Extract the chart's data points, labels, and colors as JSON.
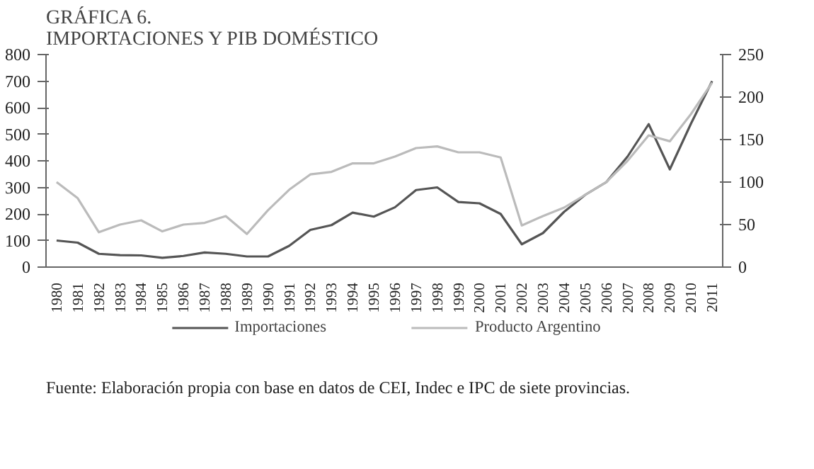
{
  "chart_data": {
    "type": "line",
    "title": "GRÁFICA 6.\nIMPORTACIONES Y PIB DOMÉSTICO",
    "categories": [
      "1980",
      "1981",
      "1982",
      "1983",
      "1984",
      "1985",
      "1986",
      "1987",
      "1988",
      "1989",
      "1990",
      "1991",
      "1992",
      "1993",
      "1994",
      "1995",
      "1996",
      "1997",
      "1998",
      "1999",
      "2000",
      "2001",
      "2002",
      "2003",
      "2004",
      "2005",
      "2006",
      "2007",
      "2008",
      "2009",
      "2010",
      "2011"
    ],
    "series": [
      {
        "name": "Importaciones",
        "color": "#555555",
        "values": [
          100,
          92,
          50,
          45,
          44,
          35,
          42,
          55,
          50,
          40,
          40,
          80,
          140,
          158,
          205,
          190,
          225,
          290,
          300,
          245,
          240,
          200,
          86,
          128,
          208,
          272,
          320,
          416,
          538,
          368,
          540,
          700
        ]
      },
      {
        "name": "Producto Argentino",
        "color": "#bbbbbb",
        "axis": "y2",
        "values": [
          100,
          81,
          41,
          50,
          55,
          42,
          50,
          52,
          60,
          39,
          67,
          91,
          109,
          112,
          122,
          122,
          130,
          140,
          142,
          135,
          135,
          129,
          49,
          60,
          70,
          85,
          100,
          125,
          155,
          148,
          180,
          217
        ]
      }
    ],
    "ylim": [
      0,
      800
    ],
    "yticks": [
      0,
      100,
      200,
      300,
      400,
      500,
      600,
      700,
      800
    ],
    "y2lim": [
      0,
      250
    ],
    "y2ticks": [
      0,
      50,
      100,
      150,
      200,
      250
    ],
    "grid": false,
    "legend": "bottom",
    "line_style": "solid",
    "marker": "none",
    "annotations": [
      "Fuente: Elaboración propia con base en datos de CEI, Indec e IPC de siete provincias."
    ]
  }
}
